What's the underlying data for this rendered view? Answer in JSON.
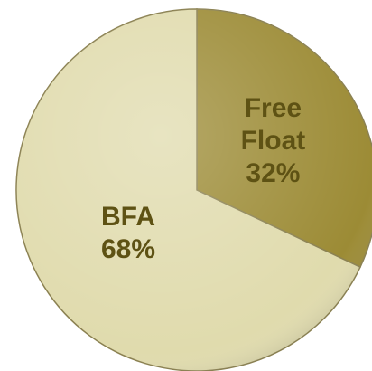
{
  "chart_data": {
    "type": "pie",
    "categories": [
      "Free Float",
      "BFA"
    ],
    "values": [
      32,
      68
    ],
    "value_labels": [
      "32%",
      "68%"
    ],
    "colors": [
      "#9c8b35",
      "#e0dbad"
    ],
    "label_color": "#5e5214"
  }
}
